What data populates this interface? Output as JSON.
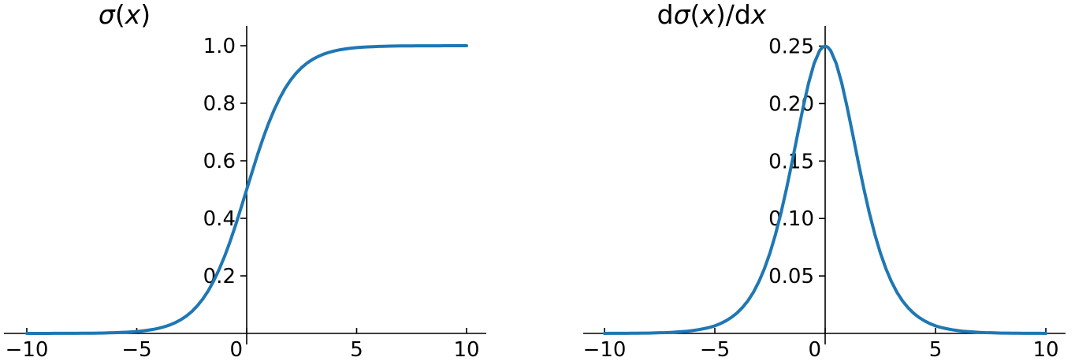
{
  "figure": {
    "background": "#ffffff",
    "axis_color": "#000000",
    "text_color": "#000000"
  },
  "chart_data": [
    {
      "id": "sigmoid",
      "type": "line",
      "title": "σ(x)",
      "title_parts": [
        {
          "t": "σ",
          "i": true
        },
        {
          "t": "(",
          "i": false
        },
        {
          "t": "x",
          "i": true
        },
        {
          "t": ")",
          "i": false
        }
      ],
      "xlabel": "",
      "ylabel": "",
      "xlim": [
        -11,
        10.9
      ],
      "ylim": [
        0,
        1.07
      ],
      "grid": false,
      "legend": "none",
      "line_color": "#1f77b4",
      "xticks": [
        -10,
        -5,
        0,
        5,
        10
      ],
      "xtick_labels": [
        "−10",
        "−5",
        "0",
        "5",
        "10"
      ],
      "yticks": [
        0.2,
        0.4,
        0.6,
        0.8,
        1.0
      ],
      "ytick_labels": [
        "0.2",
        "0.4",
        "0.6",
        "0.8",
        "1.0"
      ],
      "x": [
        -10,
        -9.75,
        -9.5,
        -9.25,
        -9,
        -8.75,
        -8.5,
        -8.25,
        -8,
        -7.75,
        -7.5,
        -7.25,
        -7,
        -6.75,
        -6.5,
        -6.25,
        -6,
        -5.75,
        -5.5,
        -5.25,
        -5,
        -4.75,
        -4.5,
        -4.25,
        -4,
        -3.75,
        -3.5,
        -3.25,
        -3,
        -2.75,
        -2.5,
        -2.25,
        -2,
        -1.75,
        -1.5,
        -1.25,
        -1,
        -0.75,
        -0.5,
        -0.25,
        0,
        0.25,
        0.5,
        0.75,
        1,
        1.25,
        1.5,
        1.75,
        2,
        2.25,
        2.5,
        2.75,
        3,
        3.25,
        3.5,
        3.75,
        4,
        4.25,
        4.5,
        4.75,
        5,
        5.25,
        5.5,
        5.75,
        6,
        6.25,
        6.5,
        6.75,
        7,
        7.25,
        7.5,
        7.75,
        8,
        8.25,
        8.5,
        8.75,
        9,
        9.25,
        9.5,
        9.75,
        10
      ],
      "y": [
        0.0,
        0.0001,
        0.0001,
        0.0001,
        0.0001,
        0.0002,
        0.0002,
        0.0003,
        0.0003,
        0.0004,
        0.0006,
        0.0007,
        0.0009,
        0.0012,
        0.0015,
        0.0019,
        0.0025,
        0.0032,
        0.0041,
        0.0052,
        0.0067,
        0.0086,
        0.011,
        0.0141,
        0.018,
        0.023,
        0.0293,
        0.0373,
        0.0474,
        0.0601,
        0.0759,
        0.0953,
        0.1192,
        0.148,
        0.1824,
        0.2227,
        0.2689,
        0.3208,
        0.3775,
        0.4378,
        0.5,
        0.5622,
        0.6225,
        0.6792,
        0.7311,
        0.7773,
        0.8176,
        0.852,
        0.8808,
        0.9047,
        0.9241,
        0.9399,
        0.9526,
        0.9627,
        0.9707,
        0.977,
        0.982,
        0.9859,
        0.989,
        0.9914,
        0.9933,
        0.9948,
        0.9959,
        0.9968,
        0.9975,
        0.9981,
        0.9985,
        0.9988,
        0.9991,
        0.9993,
        0.9994,
        0.9996,
        0.9997,
        0.9997,
        0.9998,
        0.9998,
        0.9999,
        0.9999,
        0.9999,
        0.9999,
        1.0
      ]
    },
    {
      "id": "sigmoid-derivative",
      "type": "line",
      "title": "dσ(x)/dx",
      "title_parts": [
        {
          "t": "d",
          "i": false
        },
        {
          "t": "σ",
          "i": true
        },
        {
          "t": "(",
          "i": false
        },
        {
          "t": "x",
          "i": true
        },
        {
          "t": ")/d",
          "i": false
        },
        {
          "t": "x",
          "i": true
        }
      ],
      "xlabel": "",
      "ylabel": "",
      "xlim": [
        -11,
        10.9
      ],
      "ylim": [
        0,
        0.267
      ],
      "grid": false,
      "legend": "none",
      "line_color": "#1f77b4",
      "xticks": [
        -10,
        -5,
        0,
        5,
        10
      ],
      "xtick_labels": [
        "−10",
        "−5",
        "0",
        "5",
        "10"
      ],
      "yticks": [
        0.05,
        0.1,
        0.15,
        0.2,
        0.25
      ],
      "ytick_labels": [
        "0.05",
        "0.10",
        "0.15",
        "0.20",
        "0.25"
      ],
      "x": [
        -10,
        -9.75,
        -9.5,
        -9.25,
        -9,
        -8.75,
        -8.5,
        -8.25,
        -8,
        -7.75,
        -7.5,
        -7.25,
        -7,
        -6.75,
        -6.5,
        -6.25,
        -6,
        -5.75,
        -5.5,
        -5.25,
        -5,
        -4.75,
        -4.5,
        -4.25,
        -4,
        -3.75,
        -3.5,
        -3.25,
        -3,
        -2.75,
        -2.5,
        -2.25,
        -2,
        -1.75,
        -1.5,
        -1.25,
        -1,
        -0.75,
        -0.5,
        -0.25,
        -0.125,
        0,
        0.125,
        0.25,
        0.5,
        0.75,
        1,
        1.25,
        1.5,
        1.75,
        2,
        2.25,
        2.5,
        2.75,
        3,
        3.25,
        3.5,
        3.75,
        4,
        4.25,
        4.5,
        4.75,
        5,
        5.25,
        5.5,
        5.75,
        6,
        6.25,
        6.5,
        6.75,
        7,
        7.25,
        7.5,
        7.75,
        8,
        8.25,
        8.5,
        8.75,
        9,
        9.25,
        9.5,
        9.75,
        10
      ],
      "y": [
        0.0,
        0.0001,
        0.0001,
        0.0001,
        0.0001,
        0.0002,
        0.0002,
        0.0003,
        0.0003,
        0.0004,
        0.0006,
        0.0007,
        0.0009,
        0.0012,
        0.0015,
        0.0019,
        0.0025,
        0.0032,
        0.0041,
        0.0052,
        0.0066,
        0.0085,
        0.0109,
        0.0139,
        0.0177,
        0.0225,
        0.0284,
        0.0359,
        0.0452,
        0.0565,
        0.0701,
        0.0862,
        0.105,
        0.1261,
        0.1491,
        0.1731,
        0.1966,
        0.2179,
        0.235,
        0.2461,
        0.249,
        0.25,
        0.249,
        0.2461,
        0.235,
        0.2179,
        0.1966,
        0.1731,
        0.1491,
        0.1261,
        0.105,
        0.0862,
        0.0701,
        0.0565,
        0.0452,
        0.0359,
        0.0284,
        0.0225,
        0.0177,
        0.0139,
        0.0109,
        0.0085,
        0.0066,
        0.0052,
        0.0041,
        0.0032,
        0.0025,
        0.0019,
        0.0015,
        0.0012,
        0.0009,
        0.0007,
        0.0006,
        0.0004,
        0.0003,
        0.0003,
        0.0002,
        0.0002,
        0.0001,
        0.0001,
        0.0001,
        0.0001,
        0.0
      ]
    }
  ]
}
